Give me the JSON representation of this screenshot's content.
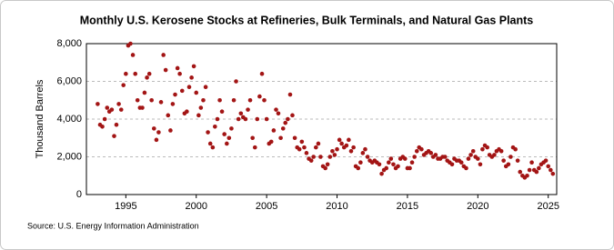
{
  "chart_data": {
    "type": "scatter",
    "title": "Monthly U.S. Kerosene Stocks at Refineries, Bulk Terminals, and Natural Gas Plants",
    "y_label": "Thousand Barrels",
    "source": "Source: U.S. Energy Information Administration",
    "color": "#a31515",
    "grid": true,
    "xlim": [
      1992.2,
      2025.6
    ],
    "xticks": [
      1995,
      2000,
      2005,
      2010,
      2015,
      2020,
      2025
    ],
    "ylim": [
      0,
      8000
    ],
    "yticks": [
      0,
      {
        "value": 2000,
        "label": "2,000"
      },
      {
        "value": 4000,
        "label": "4,000"
      },
      {
        "value": 6000,
        "label": "6,000"
      },
      {
        "value": 8000,
        "label": "8,000"
      }
    ],
    "x": [
      1993.0,
      1993.17,
      1993.33,
      1993.5,
      1993.67,
      1993.83,
      1994.0,
      1994.17,
      1994.33,
      1994.5,
      1994.67,
      1994.83,
      1995.0,
      1995.17,
      1995.33,
      1995.5,
      1995.67,
      1995.83,
      1996.0,
      1996.17,
      1996.33,
      1996.5,
      1996.67,
      1996.83,
      1997.0,
      1997.17,
      1997.33,
      1997.5,
      1997.67,
      1997.83,
      1998.0,
      1998.17,
      1998.33,
      1998.5,
      1998.67,
      1998.83,
      1999.0,
      1999.17,
      1999.33,
      1999.5,
      1999.67,
      1999.83,
      2000.0,
      2000.17,
      2000.33,
      2000.5,
      2000.67,
      2000.83,
      2001.0,
      2001.17,
      2001.33,
      2001.5,
      2001.67,
      2001.83,
      2002.0,
      2002.17,
      2002.33,
      2002.5,
      2002.67,
      2002.83,
      2003.0,
      2003.17,
      2003.33,
      2003.5,
      2003.67,
      2003.83,
      2004.0,
      2004.17,
      2004.33,
      2004.5,
      2004.67,
      2004.83,
      2005.0,
      2005.17,
      2005.33,
      2005.5,
      2005.67,
      2005.83,
      2006.0,
      2006.17,
      2006.33,
      2006.5,
      2006.67,
      2006.83,
      2007.0,
      2007.17,
      2007.33,
      2007.5,
      2007.67,
      2007.83,
      2008.0,
      2008.17,
      2008.33,
      2008.5,
      2008.67,
      2008.83,
      2009.0,
      2009.17,
      2009.33,
      2009.5,
      2009.67,
      2009.83,
      2010.0,
      2010.17,
      2010.33,
      2010.5,
      2010.67,
      2010.83,
      2011.0,
      2011.17,
      2011.33,
      2011.5,
      2011.67,
      2011.83,
      2012.0,
      2012.17,
      2012.33,
      2012.5,
      2012.67,
      2012.83,
      2013.0,
      2013.17,
      2013.33,
      2013.5,
      2013.67,
      2013.83,
      2014.0,
      2014.17,
      2014.33,
      2014.5,
      2014.67,
      2014.83,
      2015.0,
      2015.17,
      2015.33,
      2015.5,
      2015.67,
      2015.83,
      2016.0,
      2016.17,
      2016.33,
      2016.5,
      2016.67,
      2016.83,
      2017.0,
      2017.17,
      2017.33,
      2017.5,
      2017.67,
      2017.83,
      2018.0,
      2018.17,
      2018.33,
      2018.5,
      2018.67,
      2018.83,
      2019.0,
      2019.17,
      2019.33,
      2019.5,
      2019.67,
      2019.83,
      2020.0,
      2020.17,
      2020.33,
      2020.5,
      2020.67,
      2020.83,
      2021.0,
      2021.17,
      2021.33,
      2021.5,
      2021.67,
      2021.83,
      2022.0,
      2022.17,
      2022.33,
      2022.5,
      2022.67,
      2022.83,
      2023.0,
      2023.17,
      2023.33,
      2023.5,
      2023.67,
      2023.83,
      2024.0,
      2024.17,
      2024.33,
      2024.5,
      2024.67,
      2024.83,
      2025.0,
      2025.17,
      2025.33
    ],
    "values": [
      4800,
      3700,
      3600,
      4000,
      4600,
      4400,
      4500,
      3100,
      3700,
      4800,
      4500,
      5800,
      6400,
      7900,
      8000,
      7400,
      6400,
      5000,
      4600,
      4600,
      5400,
      6200,
      6400,
      5000,
      3500,
      2900,
      3300,
      4900,
      7400,
      6600,
      4200,
      3400,
      4800,
      5300,
      6700,
      6400,
      5500,
      4300,
      4400,
      5700,
      6200,
      6800,
      5400,
      4200,
      4600,
      5000,
      5700,
      3300,
      2700,
      2500,
      3600,
      4000,
      5000,
      4400,
      3200,
      2700,
      3000,
      3500,
      5000,
      6000,
      4000,
      4300,
      4100,
      4000,
      4500,
      5000,
      3000,
      2500,
      4000,
      5200,
      6400,
      5000,
      4000,
      2700,
      2800,
      3400,
      4500,
      4300,
      3000,
      3500,
      3800,
      4000,
      5300,
      4200,
      3000,
      2500,
      2400,
      2800,
      2500,
      2200,
      1900,
      1800,
      2000,
      2500,
      2700,
      2000,
      1500,
      1400,
      1600,
      2000,
      2300,
      2100,
      2400,
      2900,
      2700,
      2500,
      2600,
      2900,
      2300,
      2500,
      1500,
      1400,
      1700,
      2200,
      2400,
      2000,
      1800,
      1700,
      1800,
      1700,
      1600,
      1100,
      1300,
      1400,
      1700,
      1900,
      1600,
      1400,
      1500,
      1900,
      2000,
      1900,
      1400,
      1400,
      1700,
      2000,
      2300,
      2500,
      2400,
      2100,
      2200,
      2300,
      2200,
      2000,
      2100,
      1900,
      1900,
      2000,
      2000,
      1800,
      1700,
      1600,
      1900,
      1800,
      1800,
      1700,
      1500,
      1400,
      1900,
      2100,
      2300,
      2000,
      1900,
      1600,
      2400,
      2600,
      2500,
      2100,
      2000,
      2100,
      2300,
      2400,
      2300,
      1800,
      1500,
      1600,
      2000,
      2500,
      2400,
      1800,
      1200,
      1000,
      900,
      1000,
      1300,
      1700,
      1300,
      1200,
      1400,
      1600,
      1700,
      1800,
      1500,
      1300,
      1100
    ]
  }
}
